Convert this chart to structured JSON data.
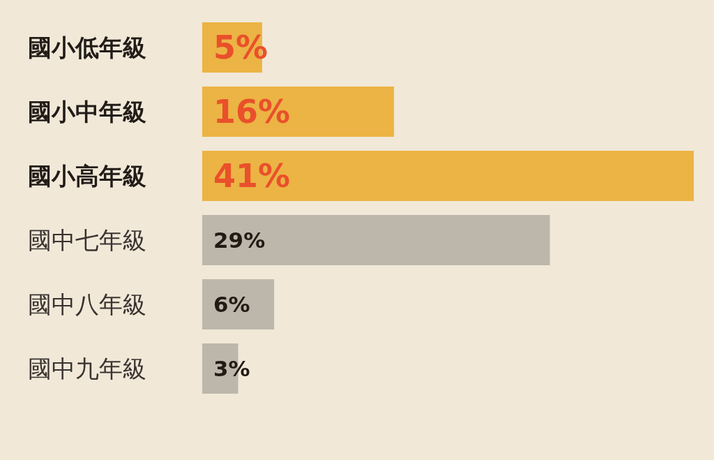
{
  "chart_data": {
    "type": "bar",
    "orientation": "horizontal",
    "categories": [
      "國小低年級",
      "國小中年級",
      "國小高年級",
      "國中七年級",
      "國中八年級",
      "國中九年級"
    ],
    "values": [
      5,
      16,
      41,
      29,
      6,
      3
    ],
    "colors": [
      "#ecb444",
      "#ecb444",
      "#ecb444",
      "#bdb7ab",
      "#bdb7ab",
      "#bdb7ab"
    ],
    "value_labels": [
      "5%",
      "16%",
      "41%",
      "29%",
      "6%",
      "3%"
    ],
    "grid": false,
    "legend": false
  }
}
